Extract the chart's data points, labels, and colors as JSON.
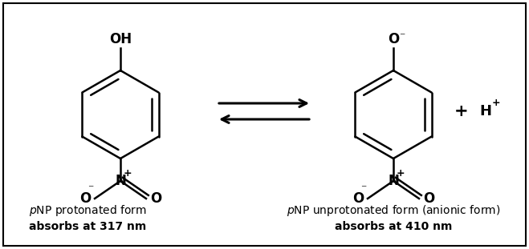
{
  "background_color": "#ffffff",
  "border_color": "#000000",
  "line_color": "#000000",
  "text_color": "#000000",
  "figsize": [
    6.59,
    3.11
  ],
  "dpi": 100,
  "left_label_line1_italic": "p",
  "left_label_line1_normal": "NP protonated form",
  "left_label_line2": "absorbs at 317 nm",
  "right_label_line1_italic": "p",
  "right_label_line1_normal": "NP unprotonated form (anionic form)",
  "right_label_line2": "absorbs at 410 nm"
}
